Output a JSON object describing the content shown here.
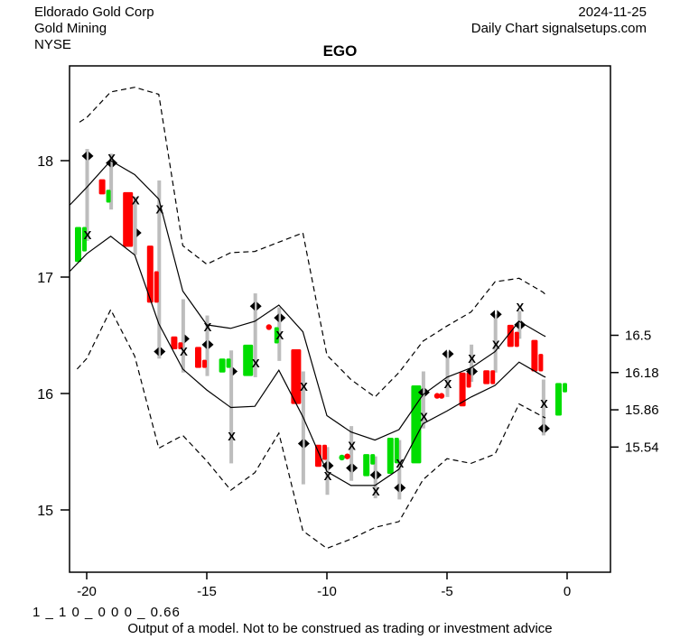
{
  "header": {
    "company": "Eldorado Gold Corp",
    "industry": "Gold Mining",
    "exchange": "NYSE",
    "date": "2024-11-25",
    "chart_type_line": "Daily Chart signalsetups.com"
  },
  "title": "EGO",
  "footer": {
    "model_params": "1 _ 1 0 _ 0 0 0 _ 0.66",
    "disclaimer": "Output of a model. Not to be construed as trading or investment advice"
  },
  "chart_data": {
    "type": "candlestick",
    "title": "EGO",
    "grid": false,
    "colors": {
      "up": "#00dd00",
      "down": "#ff0000",
      "wick": "#bdbdbd",
      "band": "#000000",
      "marker": "#000000"
    },
    "x_axis": {
      "ticks": [
        {
          "label": "-20",
          "day": -20
        },
        {
          "label": "-15",
          "day": -15
        },
        {
          "label": "-10",
          "day": -10
        },
        {
          "label": "-5",
          "day": -5
        },
        {
          "label": "0",
          "day": 0
        }
      ],
      "range_days": [
        -21.1,
        1.8
      ]
    },
    "y_axis_left": {
      "ticks": [
        {
          "label": "18",
          "price": 18
        },
        {
          "label": "17",
          "price": 17
        },
        {
          "label": "16",
          "price": 16
        },
        {
          "label": "15",
          "price": 15
        }
      ],
      "range_price": [
        14.45,
        18.81
      ]
    },
    "y_axis_right": {
      "ticks": [
        {
          "label": "16.5",
          "price": 16.5
        },
        {
          "label": "16.18",
          "price": 16.18
        },
        {
          "label": "15.86",
          "price": 15.86
        },
        {
          "label": "15.54",
          "price": 15.54
        }
      ]
    },
    "bands": {
      "upper_dashed": [
        [
          -20.3,
          18.33
        ],
        [
          -20,
          18.37
        ],
        [
          -19,
          18.59
        ],
        [
          -18,
          18.63
        ],
        [
          -17,
          18.57
        ],
        [
          -16,
          17.27
        ],
        [
          -15,
          17.11
        ],
        [
          -14,
          17.21
        ],
        [
          -13,
          17.22
        ],
        [
          -12,
          17.3
        ],
        [
          -11,
          17.38
        ],
        [
          -10,
          16.33
        ],
        [
          -9,
          16.12
        ],
        [
          -8,
          15.97
        ],
        [
          -7,
          16.18
        ],
        [
          -6,
          16.45
        ],
        [
          -5,
          16.58
        ],
        [
          -4,
          16.7
        ],
        [
          -3,
          16.96
        ],
        [
          -2,
          16.99
        ],
        [
          -1,
          16.87
        ],
        [
          -0.85,
          16.84
        ]
      ],
      "upper_solid": [
        [
          -20.7,
          17.62
        ],
        [
          -20,
          17.77
        ],
        [
          -19,
          18.0
        ],
        [
          -18,
          17.88
        ],
        [
          -17,
          17.67
        ],
        [
          -16,
          16.88
        ],
        [
          -15,
          16.59
        ],
        [
          -14,
          16.56
        ],
        [
          -13,
          16.62
        ],
        [
          -12,
          16.76
        ],
        [
          -11,
          16.53
        ],
        [
          -10,
          15.81
        ],
        [
          -9,
          15.67
        ],
        [
          -8,
          15.6
        ],
        [
          -7,
          15.69
        ],
        [
          -6,
          15.99
        ],
        [
          -5,
          16.14
        ],
        [
          -4,
          16.22
        ],
        [
          -3,
          16.36
        ],
        [
          -2,
          16.62
        ],
        [
          -1,
          16.5
        ],
        [
          -0.9,
          16.49
        ]
      ],
      "lower_solid": [
        [
          -20.7,
          17.05
        ],
        [
          -20,
          17.2
        ],
        [
          -19,
          17.35
        ],
        [
          -18,
          17.19
        ],
        [
          -17,
          16.6
        ],
        [
          -16,
          16.21
        ],
        [
          -15,
          16.03
        ],
        [
          -14,
          15.88
        ],
        [
          -13,
          15.89
        ],
        [
          -12,
          16.2
        ],
        [
          -11,
          15.8
        ],
        [
          -10,
          15.33
        ],
        [
          -9,
          15.21
        ],
        [
          -8,
          15.21
        ],
        [
          -7,
          15.35
        ],
        [
          -6,
          15.74
        ],
        [
          -5,
          15.85
        ],
        [
          -4,
          15.97
        ],
        [
          -3,
          16.07
        ],
        [
          -2,
          16.27
        ],
        [
          -1,
          16.15
        ],
        [
          -0.9,
          16.14
        ]
      ],
      "lower_dashed": [
        [
          -20.4,
          16.21
        ],
        [
          -20,
          16.3
        ],
        [
          -19,
          16.72
        ],
        [
          -18,
          16.32
        ],
        [
          -17,
          15.53
        ],
        [
          -16,
          15.64
        ],
        [
          -15,
          15.42
        ],
        [
          -14,
          15.17
        ],
        [
          -13,
          15.32
        ],
        [
          -12,
          15.66
        ],
        [
          -11,
          14.82
        ],
        [
          -10,
          14.67
        ],
        [
          -9,
          14.75
        ],
        [
          -8,
          14.85
        ],
        [
          -7,
          14.9
        ],
        [
          -6,
          15.26
        ],
        [
          -5,
          15.44
        ],
        [
          -4,
          15.4
        ],
        [
          -3,
          15.48
        ],
        [
          -2,
          15.91
        ],
        [
          -1,
          15.8
        ],
        [
          -0.9,
          15.79
        ]
      ]
    },
    "candles": [
      {
        "day": -20,
        "wick": [
          17.31,
          18.1
        ],
        "bodies": [
          {
            "c": "up",
            "lo": 17.13,
            "hi": 17.43,
            "slot": 0
          },
          {
            "c": "up",
            "lo": 17.22,
            "hi": 17.43,
            "slot": 1
          }
        ],
        "x": 17.36,
        "diamond": {
          "p": 18.04,
          "style": "full"
        }
      },
      {
        "day": -19,
        "wick": [
          17.58,
          18.06
        ],
        "bodies": [
          {
            "c": "down",
            "lo": 17.71,
            "hi": 17.84,
            "slot": 0
          },
          {
            "c": "up",
            "lo": 17.64,
            "hi": 17.75,
            "slot": 1
          }
        ],
        "x": 18.02,
        "diamond": {
          "p": 17.98,
          "style": "full"
        }
      },
      {
        "day": -18,
        "wick": [
          17.19,
          17.69
        ],
        "bodies": [
          {
            "c": "down",
            "lo": 17.26,
            "hi": 17.73,
            "slot": 2
          }
        ],
        "x": 17.66,
        "diamond": {
          "p": 17.38,
          "style": "right"
        }
      },
      {
        "day": -17,
        "wick": [
          16.3,
          17.83
        ],
        "bodies": [
          {
            "c": "down",
            "lo": 16.78,
            "hi": 17.27,
            "slot": 0
          },
          {
            "c": "down",
            "lo": 16.78,
            "hi": 17.05,
            "slot": 1
          }
        ],
        "x": 17.58,
        "diamond": {
          "p": 16.36,
          "style": "full"
        }
      },
      {
        "day": -16,
        "wick": [
          16.18,
          16.81
        ],
        "bodies": [
          {
            "c": "down",
            "lo": 16.38,
            "hi": 16.49,
            "slot": 0
          },
          {
            "c": "down",
            "lo": 16.38,
            "hi": 16.44,
            "slot": 1
          }
        ],
        "x": 16.36,
        "diamond": {
          "p": 16.47,
          "style": "right"
        }
      },
      {
        "day": -15,
        "wick": [
          16.15,
          16.67
        ],
        "bodies": [
          {
            "c": "down",
            "lo": 16.22,
            "hi": 16.4,
            "slot": 0
          },
          {
            "c": "down",
            "lo": 16.22,
            "hi": 16.29,
            "slot": 1
          }
        ],
        "x": 16.57,
        "diamond": {
          "p": 16.42,
          "style": "full"
        }
      },
      {
        "day": -14,
        "wick": [
          15.4,
          16.37
        ],
        "bodies": [
          {
            "c": "up",
            "lo": 16.18,
            "hi": 16.3,
            "slot": 0
          },
          {
            "c": "up",
            "lo": 16.22,
            "hi": 16.3,
            "slot": 1
          }
        ],
        "x": 15.63,
        "diamond": {
          "p": 16.19,
          "style": "right"
        }
      },
      {
        "day": -13,
        "wick": [
          16.14,
          16.86
        ],
        "bodies": [
          {
            "c": "up",
            "lo": 16.15,
            "hi": 16.42,
            "slot": 2
          }
        ],
        "x": 16.26,
        "diamond": {
          "p": 16.75,
          "style": "full"
        }
      },
      {
        "day": -12,
        "wick": [
          16.28,
          16.74
        ],
        "bodies": [
          {
            "c": "up",
            "lo": 16.43,
            "hi": 16.57,
            "slot": 1
          }
        ],
        "dots": [
          {
            "c": "down",
            "p": 16.57,
            "off": -11
          }
        ],
        "x": 16.5,
        "diamond": {
          "p": 16.65,
          "style": "full"
        }
      },
      {
        "day": -11,
        "wick": [
          15.22,
          16.19
        ],
        "bodies": [
          {
            "c": "down",
            "lo": 15.91,
            "hi": 16.38,
            "slot": 2
          }
        ],
        "x": 16.06,
        "diamond": {
          "p": 15.57,
          "style": "full"
        }
      },
      {
        "day": -10,
        "wick": [
          15.13,
          15.54
        ],
        "bodies": [
          {
            "c": "down",
            "lo": 15.37,
            "hi": 15.56,
            "slot": 0
          },
          {
            "c": "down",
            "lo": 15.43,
            "hi": 15.56,
            "slot": 1
          }
        ],
        "x": 15.29,
        "diamond": {
          "p": 15.38,
          "style": "full"
        }
      },
      {
        "day": -9,
        "wick": [
          15.25,
          15.72
        ],
        "dots": [
          {
            "c": "up",
            "p": 15.45,
            "off": -10
          },
          {
            "c": "down",
            "p": 15.46,
            "off": -4
          }
        ],
        "x": 15.55,
        "diamond": {
          "p": 15.36,
          "style": "full"
        }
      },
      {
        "day": -8,
        "wick": [
          15.1,
          15.46
        ],
        "bodies": [
          {
            "c": "up",
            "lo": 15.29,
            "hi": 15.48,
            "slot": 0
          },
          {
            "c": "up",
            "lo": 15.39,
            "hi": 15.48,
            "slot": 1
          }
        ],
        "x": 15.16,
        "diamond": {
          "p": 15.3,
          "style": "full"
        }
      },
      {
        "day": -7,
        "wick": [
          15.09,
          15.6
        ],
        "bodies": [
          {
            "c": "up",
            "lo": 15.31,
            "hi": 15.62,
            "slot": 0
          },
          {
            "c": "up",
            "lo": 15.4,
            "hi": 15.62,
            "slot": 1
          }
        ],
        "x": 15.4,
        "diamond": {
          "p": 15.19,
          "style": "full"
        }
      },
      {
        "day": -6,
        "wick": [
          15.7,
          16.19
        ],
        "bodies": [
          {
            "c": "up",
            "lo": 15.4,
            "hi": 16.07,
            "slot": 2
          }
        ],
        "x": 15.8,
        "diamond": {
          "p": 16.01,
          "style": "full"
        }
      },
      {
        "day": -5,
        "wick": [
          15.97,
          16.36
        ],
        "dots": [
          {
            "c": "down",
            "p": 15.98,
            "off": -11
          },
          {
            "c": "down",
            "p": 15.98,
            "off": -6
          }
        ],
        "x": 16.08,
        "diamond": {
          "p": 16.34,
          "style": "full"
        }
      },
      {
        "day": -4,
        "wick": [
          16.1,
          16.42
        ],
        "bodies": [
          {
            "c": "down",
            "lo": 15.89,
            "hi": 16.18,
            "slot": 0
          },
          {
            "c": "down",
            "lo": 16.05,
            "hi": 16.18,
            "slot": 1
          }
        ],
        "x": 16.3,
        "diamond": {
          "p": 16.19,
          "style": "full"
        }
      },
      {
        "day": -3,
        "wick": [
          16.18,
          16.68
        ],
        "bodies": [
          {
            "c": "down",
            "lo": 16.08,
            "hi": 16.2,
            "slot": 0
          },
          {
            "c": "down",
            "lo": 16.08,
            "hi": 16.2,
            "slot": 1
          }
        ],
        "x": 16.42,
        "diamond": {
          "p": 16.68,
          "style": "full"
        }
      },
      {
        "day": -2,
        "wick": [
          16.47,
          16.71
        ],
        "bodies": [
          {
            "c": "down",
            "lo": 16.4,
            "hi": 16.59,
            "slot": 0
          },
          {
            "c": "down",
            "lo": 16.4,
            "hi": 16.53,
            "slot": 1
          }
        ],
        "x": 16.74,
        "diamond": {
          "p": 16.59,
          "style": "full"
        }
      },
      {
        "day": -1,
        "wick": [
          15.64,
          16.12
        ],
        "bodies": [
          {
            "c": "down",
            "lo": 16.19,
            "hi": 16.46,
            "slot": 0
          },
          {
            "c": "down",
            "lo": 16.19,
            "hi": 16.34,
            "slot": 1
          }
        ],
        "x": 15.91,
        "diamond": {
          "p": 15.7,
          "style": "full"
        }
      },
      {
        "day": 0,
        "bodies": [
          {
            "c": "up",
            "lo": 15.81,
            "hi": 16.09,
            "slot": 0
          },
          {
            "c": "up",
            "lo": 16.01,
            "hi": 16.09,
            "slot": 1
          }
        ]
      }
    ]
  }
}
